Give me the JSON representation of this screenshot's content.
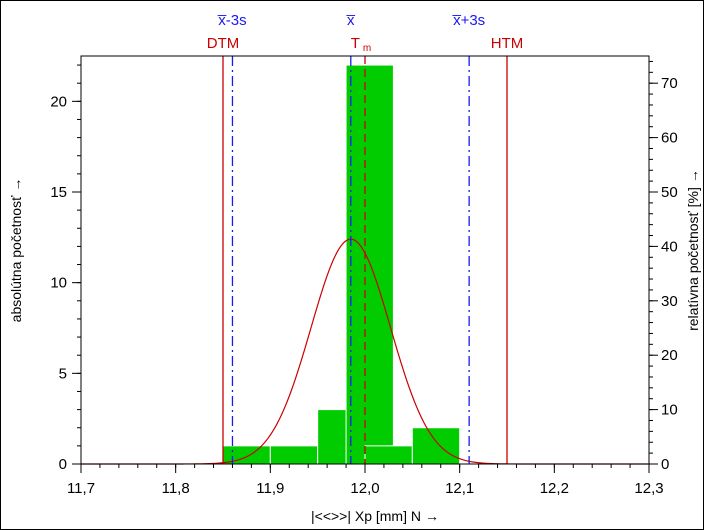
{
  "chart_data": {
    "type": "bar",
    "title": "",
    "xlabel": "|<<>>|  Xp [mm]  N",
    "ylabel": "absolútna početnosť",
    "y2label": "relatívna početnosť  [%]",
    "arrow": "→",
    "xlim": [
      11.7,
      12.3
    ],
    "ylim": [
      0,
      22.5
    ],
    "y2lim": [
      0,
      75
    ],
    "x_ticks": [
      11.7,
      11.8,
      11.9,
      12.0,
      12.1,
      12.2,
      12.3
    ],
    "x_tick_labels": [
      "11,7",
      "11,8",
      "11,9",
      "12,0",
      "12,1",
      "12,2",
      "12,3"
    ],
    "x_minor_step": 0.02,
    "y_ticks": [
      0,
      5,
      10,
      15,
      20
    ],
    "y_tick_labels": [
      "0",
      "5",
      "10",
      "15",
      "20"
    ],
    "y_minor_step": 1,
    "y2_ticks": [
      0,
      10,
      20,
      30,
      40,
      50,
      60,
      70
    ],
    "y2_tick_labels": [
      "0",
      "10",
      "20",
      "30",
      "40",
      "50",
      "60",
      "70"
    ],
    "y2_minor_step": 2,
    "bin_width": 0.05,
    "bins": [
      {
        "x0": 11.85,
        "value": 1
      },
      {
        "x0": 11.9,
        "value": 1
      },
      {
        "x0": 11.95,
        "value": 3
      },
      {
        "x0": 11.98,
        "value": 22
      },
      {
        "x0": 12.0,
        "value": 1
      },
      {
        "x0": 12.05,
        "value": 2
      }
    ],
    "bar_color": "#00cc00",
    "bar_edge_color": "#ffffff",
    "normal_curve": {
      "mean": 11.985,
      "sigma": 0.042,
      "peak": 12.4,
      "color": "#cc0000"
    },
    "vlines": [
      {
        "x": 11.85,
        "label": "DTM",
        "color": "#cc0000",
        "style": "solid",
        "row": 2
      },
      {
        "x": 11.86,
        "label": "x̅-3s",
        "color": "#1a1aee",
        "style": "dashdot",
        "row": 1
      },
      {
        "x": 11.985,
        "label": "x̅",
        "color": "#1a1aee",
        "style": "dashdot",
        "row": 1
      },
      {
        "x": 12.0,
        "label": "T",
        "sub": "m",
        "color": "#cc0000",
        "style": "dashed",
        "row": 2
      },
      {
        "x": 12.11,
        "label": "x̅+3s",
        "color": "#1a1aee",
        "style": "dashdot",
        "row": 1
      },
      {
        "x": 12.15,
        "label": "HTM",
        "color": "#cc0000",
        "style": "solid",
        "row": 2
      }
    ],
    "grid": false
  }
}
